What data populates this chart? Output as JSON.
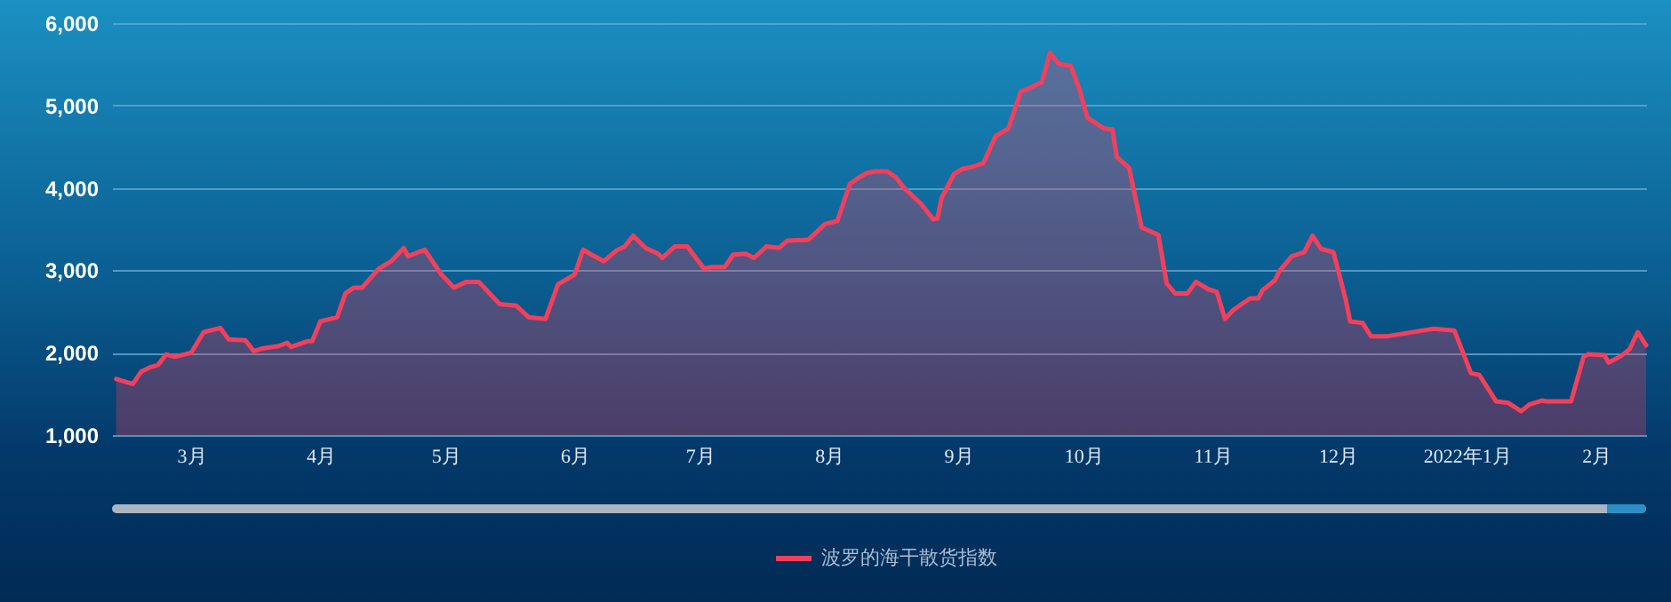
{
  "chart_data": {
    "type": "area",
    "x": [
      "2021-02-11",
      "2021-02-15",
      "2021-02-17",
      "2021-02-19",
      "2021-02-21",
      "2021-02-23",
      "2021-02-25",
      "2021-03-01",
      "2021-03-04",
      "2021-03-08",
      "2021-03-10",
      "2021-03-14",
      "2021-03-16",
      "2021-03-18",
      "2021-03-22",
      "2021-03-24",
      "2021-03-25",
      "2021-03-29",
      "2021-03-30",
      "2021-04-01",
      "2021-04-05",
      "2021-04-07",
      "2021-04-09",
      "2021-04-11",
      "2021-04-15",
      "2021-04-18",
      "2021-04-21",
      "2021-04-22",
      "2021-04-26",
      "2021-04-30",
      "2021-05-03",
      "2021-05-06",
      "2021-05-09",
      "2021-05-14",
      "2021-05-18",
      "2021-05-21",
      "2021-05-25",
      "2021-05-28",
      "2021-06-01",
      "2021-06-03",
      "2021-06-05",
      "2021-06-08",
      "2021-06-11",
      "2021-06-13",
      "2021-06-15",
      "2021-06-18",
      "2021-06-21",
      "2021-06-22",
      "2021-06-25",
      "2021-06-28",
      "2021-07-02",
      "2021-07-04",
      "2021-07-07",
      "2021-07-09",
      "2021-07-12",
      "2021-07-14",
      "2021-07-17",
      "2021-07-20",
      "2021-07-22",
      "2021-07-27",
      "2021-07-31",
      "2021-08-03",
      "2021-08-06",
      "2021-08-08",
      "2021-08-10",
      "2021-08-12",
      "2021-08-15",
      "2021-08-17",
      "2021-08-19",
      "2021-08-23",
      "2021-08-26",
      "2021-08-27",
      "2021-08-28",
      "2021-08-31",
      "2021-09-02",
      "2021-09-04",
      "2021-09-07",
      "2021-09-10",
      "2021-09-13",
      "2021-09-16",
      "2021-09-18",
      "2021-09-21",
      "2021-09-23",
      "2021-09-25",
      "2021-09-28",
      "2021-09-30",
      "2021-10-02",
      "2021-10-06",
      "2021-10-08",
      "2021-10-09",
      "2021-10-12",
      "2021-10-15",
      "2021-10-19",
      "2021-10-21",
      "2021-10-23",
      "2021-10-26",
      "2021-10-28",
      "2021-10-31",
      "2021-11-02",
      "2021-11-04",
      "2021-11-06",
      "2021-11-10",
      "2021-11-12",
      "2021-11-13",
      "2021-11-16",
      "2021-11-17",
      "2021-11-20",
      "2021-11-23",
      "2021-11-25",
      "2021-11-27",
      "2021-11-30",
      "2021-12-03",
      "2021-12-04",
      "2021-12-07",
      "2021-12-09",
      "2021-12-13",
      "2021-12-24",
      "2021-12-29",
      "2022-01-02",
      "2022-01-04",
      "2022-01-08",
      "2022-01-11",
      "2022-01-14",
      "2022-01-16",
      "2022-01-19",
      "2022-01-20",
      "2022-01-26",
      "2022-01-29",
      "2022-01-30",
      "2022-02-03",
      "2022-02-04",
      "2022-02-07",
      "2022-02-09",
      "2022-02-11",
      "2022-02-13"
    ],
    "series": [
      {
        "name": "波罗的海干散货指数",
        "color": "#f2405c",
        "values": [
          1680,
          1620,
          1770,
          1820,
          1850,
          1980,
          1950,
          2000,
          2250,
          2300,
          2160,
          2150,
          2020,
          2050,
          2080,
          2120,
          2070,
          2140,
          2140,
          2380,
          2430,
          2720,
          2790,
          2790,
          3020,
          3110,
          3270,
          3170,
          3250,
          2950,
          2790,
          2860,
          2860,
          2590,
          2570,
          2430,
          2410,
          2830,
          2950,
          3250,
          3190,
          3110,
          3240,
          3290,
          3420,
          3270,
          3200,
          3150,
          3290,
          3290,
          3020,
          3040,
          3040,
          3190,
          3200,
          3150,
          3290,
          3270,
          3360,
          3370,
          3560,
          3600,
          4050,
          4120,
          4180,
          4200,
          4200,
          4130,
          4000,
          3810,
          3620,
          3630,
          3880,
          4170,
          4230,
          4250,
          4300,
          4630,
          4720,
          5170,
          5210,
          5280,
          5640,
          5510,
          5480,
          5210,
          4850,
          4720,
          4710,
          4380,
          4240,
          3520,
          3430,
          2840,
          2720,
          2720,
          2860,
          2770,
          2740,
          2410,
          2520,
          2660,
          2660,
          2760,
          2880,
          2990,
          3170,
          3220,
          3420,
          3260,
          3220,
          2630,
          2380,
          2360,
          2200,
          2200,
          2290,
          2270,
          1750,
          1730,
          1410,
          1390,
          1290,
          1370,
          1420,
          1410,
          1410,
          1950,
          1980,
          1970,
          1880,
          1960,
          2040,
          2250,
          2090
        ]
      }
    ],
    "xlim": [
      "2021-02-10",
      "2022-02-13"
    ],
    "xticks": [
      {
        "value": "2021-03-01",
        "label": "3月"
      },
      {
        "value": "2021-04-01",
        "label": "4月"
      },
      {
        "value": "2021-05-01",
        "label": "5月"
      },
      {
        "value": "2021-06-01",
        "label": "6月"
      },
      {
        "value": "2021-07-01",
        "label": "7月"
      },
      {
        "value": "2021-08-01",
        "label": "8月"
      },
      {
        "value": "2021-09-01",
        "label": "9月"
      },
      {
        "value": "2021-10-01",
        "label": "10月"
      },
      {
        "value": "2021-11-01",
        "label": "11月"
      },
      {
        "value": "2021-12-01",
        "label": "12月"
      },
      {
        "value": "2022-01-01",
        "label": "2022年1月"
      },
      {
        "value": "2022-02-01",
        "label": "2月"
      }
    ],
    "ylim": [
      1000,
      6000
    ],
    "yticks": [
      {
        "value": 1000,
        "label": "1,000"
      },
      {
        "value": 2000,
        "label": "2,000"
      },
      {
        "value": 3000,
        "label": "3,000"
      },
      {
        "value": 4000,
        "label": "4,000"
      },
      {
        "value": 5000,
        "label": "5,000"
      },
      {
        "value": 6000,
        "label": "6,000"
      }
    ],
    "grid": "y",
    "legend": "bottom"
  }
}
